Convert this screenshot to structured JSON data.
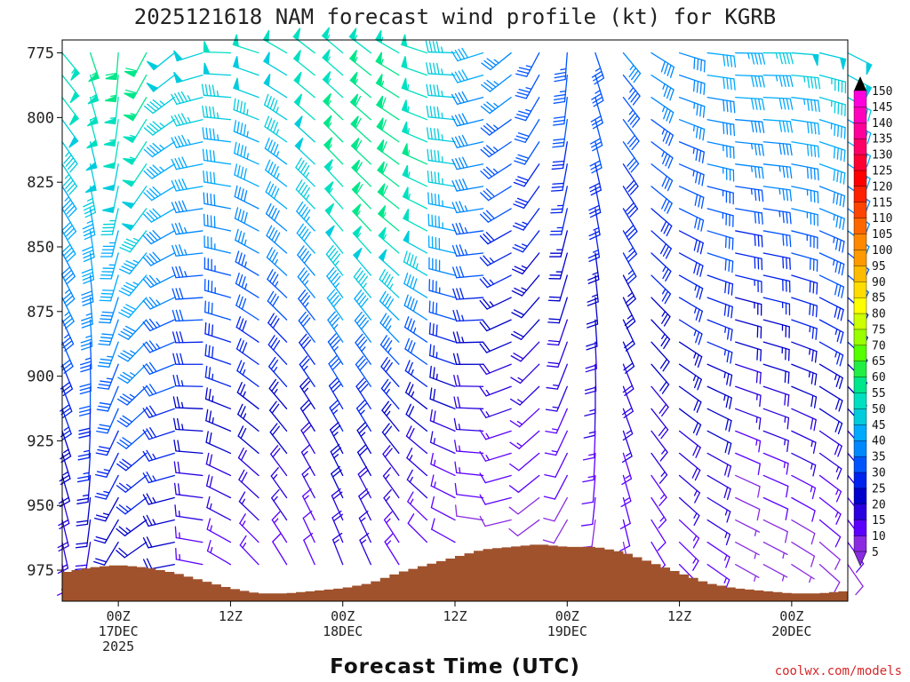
{
  "chart_data": {
    "type": "wind-barb-profile",
    "title": "2025121618 NAM forecast wind profile (kt) for KGRB",
    "xlabel": "Forecast Time (UTC)",
    "credit": "coolwx.com/models",
    "yticks": [
      "775",
      "800",
      "825",
      "850",
      "875",
      "900",
      "925",
      "950",
      "975"
    ],
    "ylim": [
      770,
      987
    ],
    "xticks": [
      {
        "hour": 6,
        "lines": [
          "00Z",
          "17DEC",
          "2025"
        ]
      },
      {
        "hour": 18,
        "lines": [
          "12Z",
          "",
          ""
        ]
      },
      {
        "hour": 30,
        "lines": [
          "00Z",
          "18DEC",
          ""
        ]
      },
      {
        "hour": 42,
        "lines": [
          "12Z",
          "",
          ""
        ]
      },
      {
        "hour": 54,
        "lines": [
          "00Z",
          "19DEC",
          ""
        ]
      },
      {
        "hour": 66,
        "lines": [
          "12Z",
          "",
          ""
        ]
      },
      {
        "hour": 78,
        "lines": [
          "00Z",
          "20DEC",
          ""
        ]
      }
    ],
    "xlim": [
      0,
      84
    ],
    "colorbar": {
      "levels": [
        5,
        10,
        15,
        20,
        25,
        30,
        35,
        40,
        45,
        50,
        55,
        60,
        65,
        70,
        75,
        80,
        85,
        90,
        95,
        100,
        105,
        110,
        115,
        120,
        125,
        130,
        135,
        140,
        145,
        150
      ],
      "colors": [
        "#8a2be2",
        "#5b00ff",
        "#2a00e0",
        "#0000cc",
        "#0022ee",
        "#0055ff",
        "#0088ff",
        "#00aaff",
        "#00ccdd",
        "#00e0c0",
        "#00e68a",
        "#22ee44",
        "#55ff00",
        "#99ff00",
        "#ccff00",
        "#ffff00",
        "#ffdd00",
        "#ffbb00",
        "#ff9900",
        "#ff8800",
        "#ff6600",
        "#ff4400",
        "#ff2200",
        "#ff0000",
        "#ff0033",
        "#ff0066",
        "#ff0099",
        "#ff00bb",
        "#ff00dd",
        "#ff00ff"
      ]
    },
    "terrain_surface_hpa": [
      [
        0,
        976
      ],
      [
        3,
        974
      ],
      [
        6,
        973
      ],
      [
        9,
        974
      ],
      [
        12,
        976
      ],
      [
        15,
        979
      ],
      [
        18,
        982
      ],
      [
        21,
        984
      ],
      [
        24,
        984
      ],
      [
        27,
        983
      ],
      [
        30,
        982
      ],
      [
        33,
        980
      ],
      [
        36,
        976
      ],
      [
        39,
        973
      ],
      [
        42,
        970
      ],
      [
        45,
        967
      ],
      [
        48,
        966
      ],
      [
        51,
        965
      ],
      [
        54,
        966
      ],
      [
        57,
        966
      ],
      [
        60,
        968
      ],
      [
        63,
        972
      ],
      [
        66,
        976
      ],
      [
        69,
        980
      ],
      [
        72,
        982
      ],
      [
        75,
        983
      ],
      [
        78,
        984
      ],
      [
        81,
        984
      ],
      [
        84,
        983
      ]
    ],
    "terrain_color": "#a0522d"
  }
}
